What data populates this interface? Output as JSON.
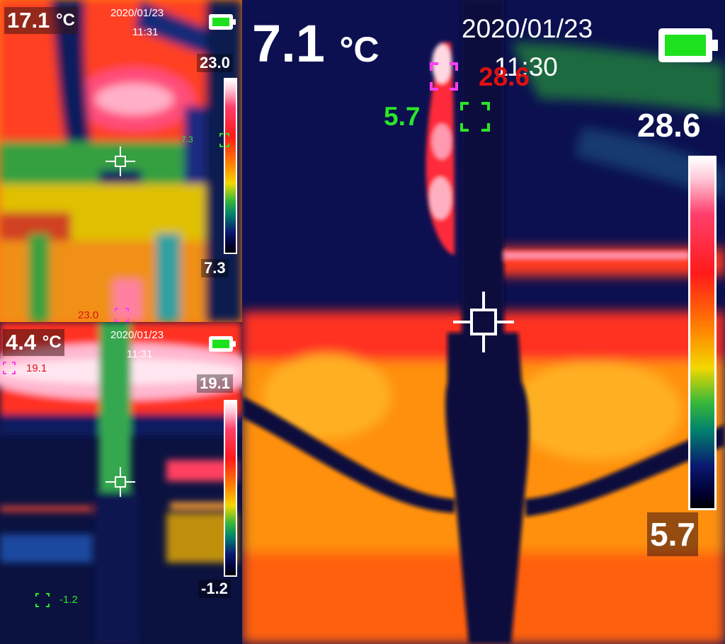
{
  "colors": {
    "battery_fill": "#1ee11e",
    "hot_marker": "#ff3df0",
    "cold_marker": "#29e629",
    "hot_text": "#e01010",
    "cold_text": "#29e629"
  },
  "panels": {
    "top_left": {
      "center_temp": "17.1",
      "unit": "°C",
      "date": "2020/01/23",
      "time": "11:31",
      "scale_max": "23.0",
      "scale_min": "7.3",
      "hot_value": "23.0",
      "cold_value": "7.3"
    },
    "bottom_left": {
      "center_temp": "4.4",
      "unit": "°C",
      "date": "2020/01/23",
      "time": "11:31",
      "scale_max": "19.1",
      "scale_min": "-1.2",
      "hot_value": "19.1",
      "cold_value": "-1.2"
    },
    "main": {
      "center_temp": "7.1",
      "unit": "°C",
      "date": "2020/01/23",
      "time": "11:30",
      "scale_max": "28.6",
      "scale_min": "5.7",
      "hot_value": "28.6",
      "cold_value": "5.7"
    }
  },
  "icons": [
    "battery-icon",
    "crosshair-icon",
    "hot-spot-marker-icon",
    "cold-spot-marker-icon"
  ]
}
